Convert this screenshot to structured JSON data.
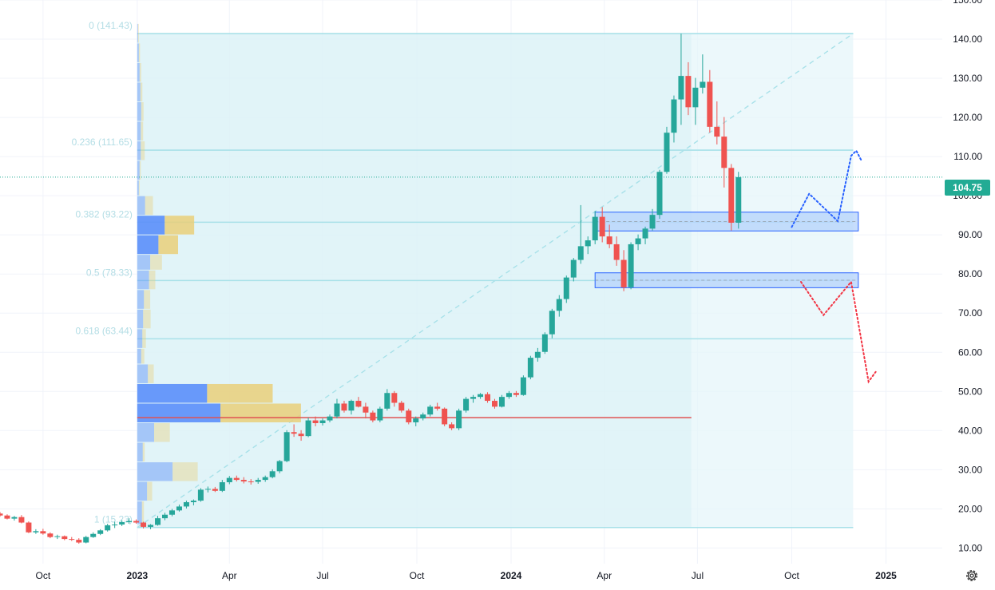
{
  "chart_data": {
    "type": "candlestick",
    "y_axis": {
      "ticks": [
        "150.00",
        "140.00",
        "130.00",
        "120.00",
        "110.00",
        "100.00",
        "90.00",
        "80.00",
        "70.00",
        "60.00",
        "50.00",
        "40.00",
        "30.00",
        "20.00",
        "10.00"
      ],
      "range": [
        6,
        150
      ],
      "position": "right"
    },
    "x_axis": {
      "ticks": [
        {
          "label": "Oct",
          "date": "2022-10-01",
          "bold": false
        },
        {
          "label": "2023",
          "date": "2023-01-01",
          "bold": true
        },
        {
          "label": "Apr",
          "date": "2023-04-01",
          "bold": false
        },
        {
          "label": "Jul",
          "date": "2023-07-01",
          "bold": false
        },
        {
          "label": "Oct",
          "date": "2023-10-01",
          "bold": false
        },
        {
          "label": "2024",
          "date": "2024-01-01",
          "bold": true
        },
        {
          "label": "Apr",
          "date": "2024-04-01",
          "bold": false
        },
        {
          "label": "Jul",
          "date": "2024-07-01",
          "bold": false
        },
        {
          "label": "Oct",
          "date": "2024-10-01",
          "bold": false
        },
        {
          "label": "2025",
          "date": "2025-01-01",
          "bold": true
        }
      ],
      "range": [
        "2022-08-20",
        "2025-02-25"
      ]
    },
    "last_price": {
      "label": "104.75",
      "value": 104.75
    },
    "fib_levels": [
      {
        "label": "0 (141.43)",
        "value": 141.43
      },
      {
        "label": "0.236 (111.65)",
        "value": 111.65
      },
      {
        "label": "0.382 (93.22)",
        "value": 93.22
      },
      {
        "label": "0.5 (78.33)",
        "value": 78.33
      },
      {
        "label": "0.618 (63.44)",
        "value": 63.44
      },
      {
        "label": "1 (15.23)",
        "value": 15.23
      }
    ],
    "fib_range": {
      "start": "2023-01-01",
      "end": "2024-11-30",
      "from": 15.23,
      "to": 141.43
    },
    "volume_profile_range": {
      "start": "2023-01-01",
      "end": "2024-06-25"
    },
    "support_line": {
      "value": 43.3,
      "start": "2023-01-01",
      "end": "2024-06-25"
    },
    "zones": [
      {
        "name": "upper-zone",
        "low": 91.0,
        "high": 95.8,
        "start": "2024-03-23",
        "end": "2024-12-05"
      },
      {
        "name": "lower-zone",
        "low": 76.5,
        "high": 80.3,
        "start": "2024-03-23",
        "end": "2024-12-05"
      }
    ],
    "projections": [
      {
        "name": "bullish",
        "color": "#2962ff",
        "points": [
          [
            "2024-10-01",
            92
          ],
          [
            "2024-10-18",
            100.5
          ],
          [
            "2024-11-15",
            93.5
          ],
          [
            "2024-11-28",
            110.2
          ],
          [
            "2024-12-03",
            111.5
          ],
          [
            "2024-12-08",
            109
          ]
        ]
      },
      {
        "name": "bearish",
        "color": "#f23645",
        "points": [
          [
            "2024-10-10",
            78
          ],
          [
            "2024-11-01",
            69.5
          ],
          [
            "2024-11-28",
            78
          ],
          [
            "2024-12-15",
            52.5
          ],
          [
            "2024-12-22",
            55
          ]
        ]
      }
    ],
    "candles": [
      [
        "2022-08-20",
        18.8,
        19.2,
        18.0,
        18.3
      ],
      [
        "2022-08-27",
        18.3,
        18.6,
        17.3,
        17.5
      ],
      [
        "2022-09-03",
        17.5,
        18.2,
        17.0,
        17.9
      ],
      [
        "2022-09-10",
        17.9,
        18.4,
        16.3,
        16.5
      ],
      [
        "2022-09-17",
        16.5,
        16.8,
        13.8,
        14.0
      ],
      [
        "2022-09-24",
        14.0,
        14.8,
        13.6,
        14.3
      ],
      [
        "2022-10-01",
        14.3,
        14.9,
        13.4,
        13.7
      ],
      [
        "2022-10-08",
        13.7,
        14.0,
        12.5,
        12.8
      ],
      [
        "2022-10-15",
        12.8,
        13.4,
        12.3,
        13.0
      ],
      [
        "2022-10-22",
        13.0,
        13.2,
        12.0,
        12.3
      ],
      [
        "2022-10-29",
        12.3,
        12.8,
        11.8,
        12.1
      ],
      [
        "2022-11-05",
        12.1,
        12.5,
        11.1,
        11.4
      ],
      [
        "2022-11-12",
        11.4,
        13.1,
        11.2,
        12.8
      ],
      [
        "2022-11-19",
        12.8,
        14.0,
        12.6,
        13.6
      ],
      [
        "2022-11-26",
        13.6,
        14.8,
        13.3,
        14.5
      ],
      [
        "2022-12-03",
        14.5,
        16.2,
        14.2,
        15.8
      ],
      [
        "2022-12-10",
        15.8,
        16.7,
        15.1,
        16.0
      ],
      [
        "2022-12-17",
        16.0,
        17.1,
        15.6,
        16.6
      ],
      [
        "2022-12-24",
        16.6,
        17.6,
        16.2,
        16.9
      ],
      [
        "2022-12-31",
        16.9,
        17.3,
        16.2,
        16.5
      ],
      [
        "2023-01-07",
        16.5,
        16.7,
        15.0,
        15.4
      ],
      [
        "2023-01-14",
        15.4,
        16.1,
        14.8,
        15.9
      ],
      [
        "2023-01-21",
        15.9,
        18.2,
        15.7,
        17.6
      ],
      [
        "2023-01-28",
        17.6,
        19.0,
        17.1,
        18.5
      ],
      [
        "2023-02-04",
        18.5,
        20.0,
        18.1,
        19.6
      ],
      [
        "2023-02-11",
        19.6,
        21.1,
        19.3,
        20.6
      ],
      [
        "2023-02-18",
        20.6,
        22.1,
        20.1,
        21.7
      ],
      [
        "2023-02-25",
        21.7,
        22.4,
        20.9,
        22.1
      ],
      [
        "2023-03-04",
        22.1,
        25.3,
        21.8,
        24.9
      ],
      [
        "2023-03-11",
        24.9,
        25.7,
        24.2,
        25.1
      ],
      [
        "2023-03-18",
        25.1,
        25.6,
        24.3,
        24.6
      ],
      [
        "2023-03-25",
        24.6,
        27.4,
        24.3,
        26.8
      ],
      [
        "2023-04-01",
        26.8,
        28.4,
        26.3,
        27.9
      ],
      [
        "2023-04-08",
        27.9,
        28.5,
        27.0,
        27.4
      ],
      [
        "2023-04-15",
        27.4,
        28.1,
        26.5,
        27.0
      ],
      [
        "2023-04-22",
        27.0,
        27.6,
        26.2,
        26.9
      ],
      [
        "2023-04-29",
        26.9,
        27.9,
        26.4,
        27.4
      ],
      [
        "2023-05-06",
        27.4,
        28.5,
        26.9,
        28.1
      ],
      [
        "2023-05-13",
        28.1,
        30.1,
        27.8,
        29.6
      ],
      [
        "2023-05-20",
        29.6,
        32.5,
        29.1,
        32.2
      ],
      [
        "2023-05-27",
        32.2,
        40.1,
        31.9,
        39.6
      ],
      [
        "2023-06-03",
        39.6,
        41.6,
        38.4,
        39.2
      ],
      [
        "2023-06-10",
        39.2,
        40.1,
        37.4,
        38.6
      ],
      [
        "2023-06-17",
        38.6,
        43.3,
        38.3,
        42.6
      ],
      [
        "2023-06-24",
        42.6,
        43.6,
        41.1,
        41.9
      ],
      [
        "2023-07-01",
        41.9,
        43.1,
        41.3,
        42.6
      ],
      [
        "2023-07-08",
        42.6,
        44.1,
        42.1,
        43.6
      ],
      [
        "2023-07-15",
        43.6,
        48.1,
        43.1,
        46.9
      ],
      [
        "2023-07-22",
        46.9,
        47.6,
        44.6,
        45.1
      ],
      [
        "2023-07-29",
        45.1,
        47.9,
        44.1,
        47.6
      ],
      [
        "2023-08-05",
        47.6,
        48.6,
        45.9,
        46.1
      ],
      [
        "2023-08-12",
        46.1,
        47.1,
        43.1,
        44.6
      ],
      [
        "2023-08-19",
        44.6,
        45.1,
        42.1,
        42.6
      ],
      [
        "2023-08-26",
        42.6,
        46.1,
        42.1,
        45.6
      ],
      [
        "2023-09-02",
        45.6,
        50.6,
        45.1,
        49.6
      ],
      [
        "2023-09-09",
        49.6,
        50.1,
        46.1,
        47.1
      ],
      [
        "2023-09-16",
        47.1,
        47.6,
        44.6,
        45.1
      ],
      [
        "2023-09-23",
        45.1,
        45.6,
        41.6,
        42.1
      ],
      [
        "2023-09-30",
        42.1,
        43.6,
        41.1,
        43.1
      ],
      [
        "2023-10-07",
        43.1,
        44.6,
        42.6,
        44.1
      ],
      [
        "2023-10-14",
        44.1,
        46.6,
        43.6,
        46.1
      ],
      [
        "2023-10-21",
        46.1,
        47.1,
        45.1,
        45.6
      ],
      [
        "2023-10-28",
        45.6,
        45.9,
        41.1,
        41.6
      ],
      [
        "2023-11-04",
        41.6,
        42.1,
        40.1,
        40.6
      ],
      [
        "2023-11-11",
        40.6,
        45.6,
        40.1,
        45.1
      ],
      [
        "2023-11-18",
        45.1,
        48.6,
        44.6,
        48.1
      ],
      [
        "2023-11-25",
        48.1,
        49.1,
        47.1,
        48.6
      ],
      [
        "2023-12-02",
        48.6,
        49.6,
        48.1,
        49.3
      ],
      [
        "2023-12-09",
        49.3,
        49.8,
        47.1,
        47.6
      ],
      [
        "2023-12-16",
        47.6,
        48.1,
        45.6,
        46.1
      ],
      [
        "2023-12-23",
        46.1,
        49.1,
        45.9,
        48.6
      ],
      [
        "2023-12-30",
        48.6,
        50.1,
        48.1,
        49.6
      ],
      [
        "2024-01-06",
        49.6,
        50.1,
        48.6,
        49.1
      ],
      [
        "2024-01-13",
        49.1,
        54.1,
        48.9,
        53.6
      ],
      [
        "2024-01-20",
        53.6,
        59.1,
        53.1,
        58.6
      ],
      [
        "2024-01-27",
        58.6,
        61.1,
        57.6,
        60.1
      ],
      [
        "2024-02-03",
        60.1,
        65.1,
        59.6,
        64.6
      ],
      [
        "2024-02-10",
        64.6,
        71.1,
        63.6,
        70.6
      ],
      [
        "2024-02-17",
        70.6,
        74.6,
        69.1,
        73.6
      ],
      [
        "2024-02-24",
        73.6,
        79.6,
        72.6,
        79.1
      ],
      [
        "2024-03-02",
        79.1,
        84.1,
        78.1,
        83.6
      ],
      [
        "2024-03-09",
        83.6,
        97.6,
        82.6,
        87.1
      ],
      [
        "2024-03-16",
        87.1,
        89.6,
        85.1,
        88.6
      ],
      [
        "2024-03-23",
        88.6,
        96.1,
        87.6,
        94.6
      ],
      [
        "2024-03-30",
        94.6,
        97.1,
        88.1,
        89.6
      ],
      [
        "2024-04-06",
        89.6,
        92.6,
        86.6,
        87.6
      ],
      [
        "2024-04-13",
        87.6,
        89.6,
        82.1,
        83.6
      ],
      [
        "2024-04-20",
        83.6,
        86.1,
        75.6,
        76.6
      ],
      [
        "2024-04-27",
        76.6,
        88.1,
        76.1,
        87.6
      ],
      [
        "2024-05-04",
        87.6,
        90.1,
        86.1,
        89.1
      ],
      [
        "2024-05-11",
        89.1,
        92.1,
        87.6,
        91.6
      ],
      [
        "2024-05-18",
        91.6,
        96.6,
        91.1,
        95.1
      ],
      [
        "2024-05-25",
        95.1,
        106.6,
        94.1,
        106.1
      ],
      [
        "2024-06-01",
        106.1,
        117.6,
        105.6,
        116.1
      ],
      [
        "2024-06-08",
        116.1,
        125.6,
        113.6,
        124.6
      ],
      [
        "2024-06-15",
        124.6,
        141.4,
        118.1,
        130.6
      ],
      [
        "2024-06-22",
        130.6,
        134.1,
        120.6,
        122.6
      ],
      [
        "2024-06-29",
        122.6,
        130.1,
        118.1,
        127.6
      ],
      [
        "2024-07-06",
        127.6,
        136.1,
        126.1,
        129.1
      ],
      [
        "2024-07-13",
        129.1,
        132.1,
        116.1,
        117.6
      ],
      [
        "2024-07-20",
        117.6,
        124.1,
        113.1,
        115.1
      ],
      [
        "2024-07-27",
        115.1,
        120.1,
        102.1,
        107.1
      ],
      [
        "2024-08-03",
        107.1,
        108.1,
        91.1,
        93.1
      ],
      [
        "2024-08-10",
        93.1,
        106.1,
        91.6,
        104.75
      ]
    ],
    "volume_profile": [
      {
        "low": 139,
        "high": 144,
        "up": 0.2,
        "down": 0.2
      },
      {
        "low": 134,
        "high": 139,
        "up": 0.4,
        "down": 0.3
      },
      {
        "low": 129,
        "high": 134,
        "up": 0.6,
        "down": 0.4
      },
      {
        "low": 124,
        "high": 129,
        "up": 0.8,
        "down": 0.5
      },
      {
        "low": 119,
        "high": 124,
        "up": 1.0,
        "down": 0.6
      },
      {
        "low": 114,
        "high": 119,
        "up": 0.9,
        "down": 0.6
      },
      {
        "low": 109,
        "high": 114,
        "up": 0.9,
        "down": 1.0
      },
      {
        "low": 104,
        "high": 109,
        "up": 0.6,
        "down": 0.3
      },
      {
        "low": 100,
        "high": 104,
        "up": 0.4,
        "down": 0.2
      },
      {
        "low": 95,
        "high": 100,
        "up": 2.0,
        "down": 2.0
      },
      {
        "low": 90,
        "high": 95,
        "up": 7.0,
        "down": 7.5
      },
      {
        "low": 85,
        "high": 90,
        "up": 5.4,
        "down": 5.0
      },
      {
        "low": 81,
        "high": 85,
        "up": 3.3,
        "down": 3.0
      },
      {
        "low": 76,
        "high": 81,
        "up": 3.0,
        "down": 1.6
      },
      {
        "low": 71,
        "high": 76,
        "up": 1.7,
        "down": 1.6
      },
      {
        "low": 66,
        "high": 71,
        "up": 1.5,
        "down": 1.9
      },
      {
        "low": 61,
        "high": 66,
        "up": 1.3,
        "down": 0.9
      },
      {
        "low": 57,
        "high": 61,
        "up": 1.0,
        "down": 0.8
      },
      {
        "low": 52,
        "high": 57,
        "up": 2.7,
        "down": 1.5
      },
      {
        "low": 47,
        "high": 52,
        "up": 17.8,
        "down": 16.7
      },
      {
        "low": 42,
        "high": 47,
        "up": 21.2,
        "down": 20.5
      },
      {
        "low": 37,
        "high": 42,
        "up": 4.3,
        "down": 4.0
      },
      {
        "low": 32,
        "high": 37,
        "up": 1.4,
        "down": 0.5
      },
      {
        "low": 27,
        "high": 32,
        "up": 9.0,
        "down": 6.4
      },
      {
        "low": 22,
        "high": 27,
        "up": 2.5,
        "down": 1.3
      },
      {
        "low": 16,
        "high": 22,
        "up": 1.2,
        "down": 0.5
      }
    ],
    "colors": {
      "up": "#26a69a",
      "down": "#ef5350",
      "fib": "#a8e1e9",
      "fib_label": "#b3dde5",
      "fib_fill": "#e6f6f9",
      "zone_fill": "#b8d4fb",
      "zone_stroke": "#2962ff",
      "vp_up": "#5b8ff9",
      "vp_down": "#e9cf7a",
      "support": "#e05252",
      "last_price": "#22ab94"
    }
  }
}
